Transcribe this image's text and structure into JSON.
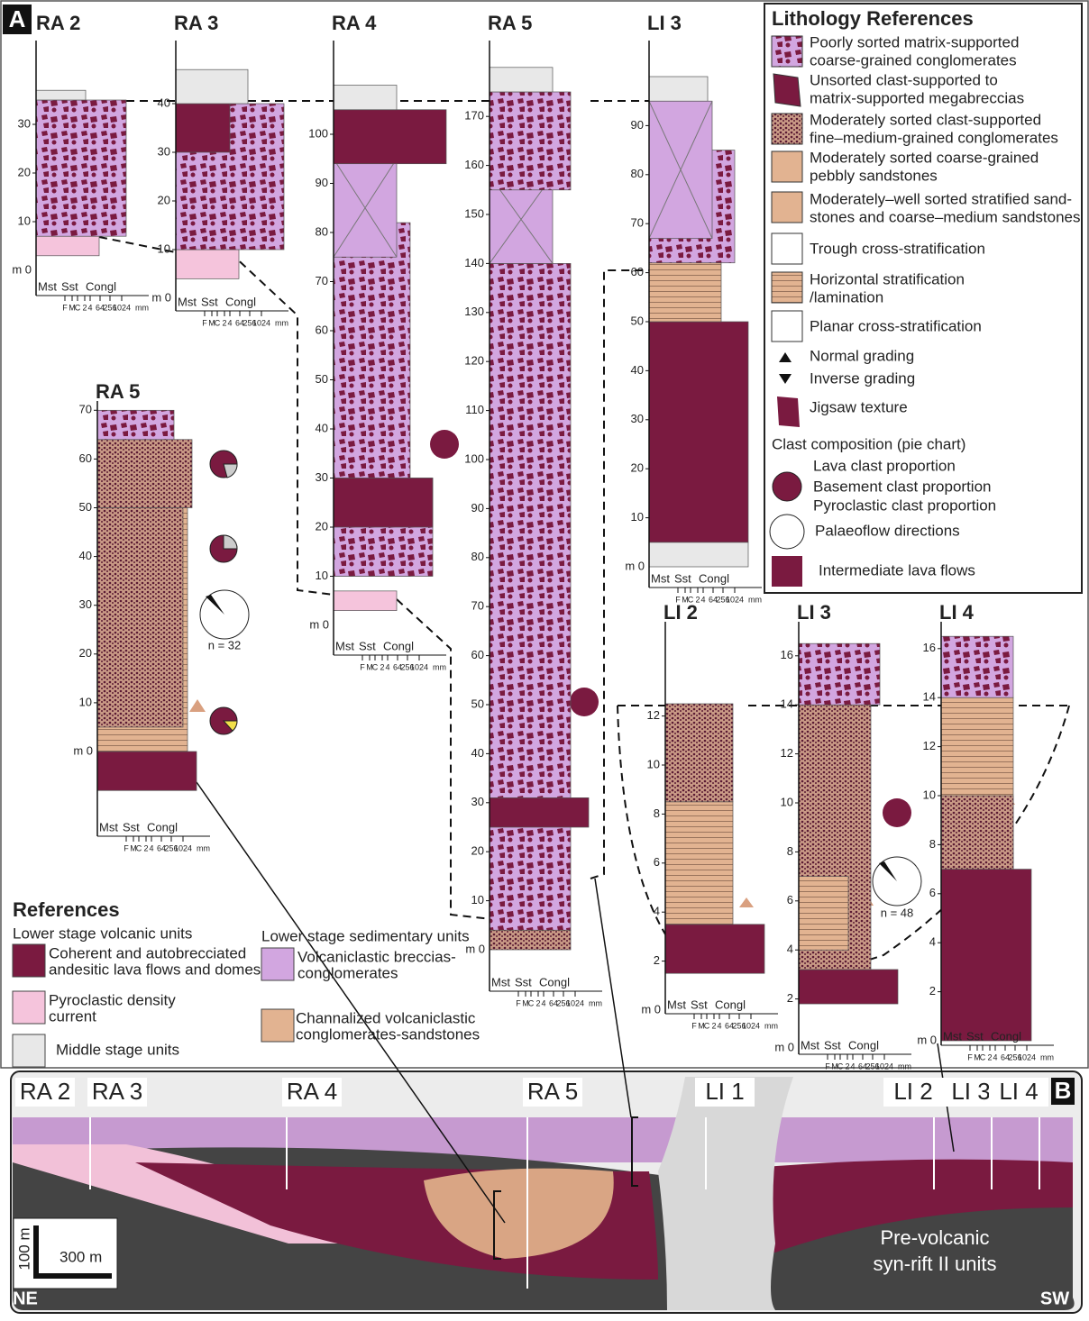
{
  "panel_a": {
    "label": "A",
    "columns": [
      {
        "title": "RA 2",
        "zero_label": "m 0",
        "ticks": [
          10,
          20,
          30
        ]
      },
      {
        "title": "RA 3",
        "zero_label": "m 0",
        "ticks": [
          10,
          20,
          30,
          40
        ]
      },
      {
        "title": "RA 4",
        "zero_label": "m 0",
        "ticks": [
          10,
          20,
          30,
          40,
          50,
          60,
          70,
          80,
          90,
          100
        ]
      },
      {
        "title": "RA 5",
        "zero_label": "m 0",
        "ticks": [
          10,
          20,
          30,
          40,
          50,
          60,
          70,
          80,
          90,
          100,
          110,
          120,
          130,
          140,
          150,
          160,
          170
        ]
      },
      {
        "title": "LI 3",
        "zero_label": "m 0",
        "ticks": [
          10,
          20,
          30,
          40,
          50,
          60,
          70,
          80,
          90
        ]
      },
      {
        "title": "RA 5",
        "zero_label": "m 0",
        "ticks": [
          10,
          20,
          30,
          40,
          50,
          60,
          70
        ]
      },
      {
        "title": "LI 2",
        "zero_label": "m 0",
        "ticks": [
          2,
          4,
          6,
          8,
          10,
          12
        ]
      },
      {
        "title": "LI 3",
        "zero_label": "m 0",
        "ticks": [
          2,
          4,
          6,
          8,
          10,
          12,
          14,
          16
        ]
      },
      {
        "title": "LI 4",
        "zero_label": "m 0",
        "ticks": [
          2,
          4,
          6,
          8,
          10,
          12,
          14,
          16
        ]
      }
    ],
    "grain_scale": {
      "classes": [
        "Mst",
        "Sst",
        "Congl"
      ],
      "sizes": [
        "F",
        "M",
        "C",
        "2",
        "4",
        "64",
        "256",
        "1024"
      ],
      "unit": "mm"
    },
    "palaeoflow": [
      {
        "n_label": "n = 32"
      },
      {
        "n_label": "n = 48"
      }
    ]
  },
  "lithology_references": {
    "title": "Lithology References",
    "items": [
      {
        "lines": [
          "Poorly sorted matrix-supported",
          "coarse-grained conglomerates"
        ]
      },
      {
        "lines": [
          "Unsorted clast-supported to",
          "matrix-supported megabreccias"
        ]
      },
      {
        "lines": [
          "Moderately sorted clast-supported",
          "fine–medium-grained conglomerates"
        ]
      },
      {
        "lines": [
          "Moderately sorted coarse-grained",
          "pebbly sandstones"
        ]
      },
      {
        "lines": [
          "Moderately–well sorted stratified sand-",
          "stones and coarse–medium sandstones"
        ]
      },
      {
        "lines": [
          "Trough cross-stratification"
        ]
      },
      {
        "lines": [
          "Horizontal stratification",
          "/lamination"
        ]
      },
      {
        "lines": [
          "Planar cross-stratification"
        ]
      },
      {
        "lines": [
          "Normal grading"
        ]
      },
      {
        "lines": [
          "Inverse grading"
        ]
      },
      {
        "lines": [
          "Jigsaw texture"
        ]
      }
    ],
    "clast_title": "Clast composition (pie chart)",
    "clast_items": [
      "Lava clast proportion",
      "Basement clast proportion",
      "Pyroclastic clast proportion"
    ],
    "palaeoflow": "Palaeoflow directions",
    "lava": "Intermediate lava flows"
  },
  "references": {
    "title": "References",
    "volcanic_title": "Lower stage volcanic units",
    "volcanic_items": [
      {
        "lines": [
          "Coherent and autobrecciated",
          "andesitic lava flows and domes"
        ]
      },
      {
        "lines": [
          "Pyroclastic density",
          "current"
        ]
      },
      {
        "lines": [
          "Middle stage units"
        ]
      }
    ],
    "sedimentary_title": "Lower stage sedimentary units",
    "sedimentary_items": [
      {
        "lines": [
          "Volcaniclastic breccias-",
          "conglomerates"
        ]
      },
      {
        "lines": [
          "Channalized volcaniclastic",
          "conglomerates-sandstones"
        ]
      }
    ]
  },
  "panel_b": {
    "label": "B",
    "sections": [
      "RA 2",
      "RA 3",
      "RA 4",
      "RA 5",
      "LI 1",
      "LI 2",
      "LI 3",
      "LI 4"
    ],
    "scale": {
      "vertical": "100 m",
      "horizontal": "300 m"
    },
    "left": "NE",
    "right": "SW",
    "units": [
      "Pre-volcanic",
      "syn-rift II units"
    ]
  }
}
